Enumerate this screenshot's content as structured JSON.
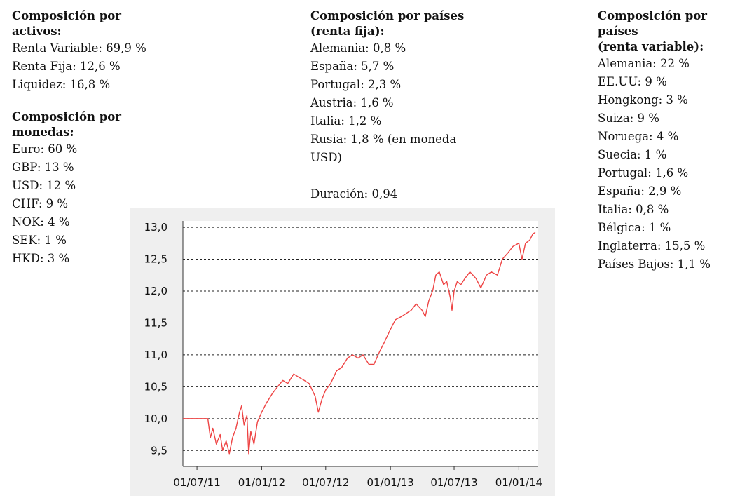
{
  "assets": {
    "title_l1": "Composición por",
    "title_l2": "activos:",
    "items": [
      "Renta Variable: 69,9 %",
      "Renta Fija: 12,6 %",
      "Liquidez: 16,8 %"
    ]
  },
  "currencies": {
    "title_l1": "Composición por",
    "title_l2": "monedas:",
    "items": [
      "Euro: 60 %",
      "GBP: 13 %",
      "USD: 12 %",
      "CHF: 9 %",
      "NOK: 4 %",
      "SEK: 1 %",
      "HKD: 3 %"
    ]
  },
  "fixed_income": {
    "title_l1": "Composición por países",
    "title_l2": "(renta fija):",
    "items": [
      "Alemania: 0,8 %",
      "España: 5,7 %",
      "Portugal: 2,3 %",
      "Austria: 1,6 %",
      "Italia: 1,2 %",
      "Rusia: 1,8 % (en moneda",
      "USD)"
    ],
    "duration": "Duración: 0,94"
  },
  "equity": {
    "title_l1": "Composición por países",
    "title_l2": "(renta variable):",
    "items": [
      "Alemania: 22 %",
      "EE.UU: 9 %",
      "Hongkong: 3 %",
      "Suiza: 9 %",
      "Noruega: 4 %",
      "Suecia: 1 %",
      "Portugal: 1,6 %",
      "España: 2,9 %",
      "Italia: 0,8 %",
      "Bélgica: 1 %",
      "Inglaterra: 15,5 %",
      "Países Bajos: 1,1 %"
    ]
  },
  "chart_data": {
    "type": "line",
    "title": "",
    "xlabel": "",
    "ylabel": "",
    "ylim": [
      9.25,
      13.1
    ],
    "yticks": [
      "13,0",
      "12,5",
      "12,0",
      "11,5",
      "11,0",
      "10,5",
      "10,0",
      "9,5"
    ],
    "ytick_values": [
      13.0,
      12.5,
      12.0,
      11.5,
      11.0,
      10.5,
      10.0,
      9.5
    ],
    "xticks": [
      "01/07/11",
      "01/01/12",
      "01/07/12",
      "01/01/13",
      "01/07/13",
      "01/01/14"
    ],
    "xtick_dates": [
      "2011-07-01",
      "2012-01-01",
      "2012-07-01",
      "2013-01-01",
      "2013-07-01",
      "2014-01-01"
    ],
    "grid": "horizontal dashed",
    "line_color": "#ee4444",
    "series": [
      {
        "points": [
          [
            "2011-05-22",
            10.0
          ],
          [
            "2011-07-15",
            10.0
          ],
          [
            "2011-08-01",
            10.0
          ],
          [
            "2011-08-08",
            9.7
          ],
          [
            "2011-08-15",
            9.85
          ],
          [
            "2011-08-25",
            9.6
          ],
          [
            "2011-09-05",
            9.75
          ],
          [
            "2011-09-12",
            9.5
          ],
          [
            "2011-09-22",
            9.65
          ],
          [
            "2011-10-01",
            9.45
          ],
          [
            "2011-10-10",
            9.7
          ],
          [
            "2011-10-20",
            9.85
          ],
          [
            "2011-10-30",
            10.1
          ],
          [
            "2011-11-05",
            10.2
          ],
          [
            "2011-11-12",
            9.9
          ],
          [
            "2011-11-20",
            10.05
          ],
          [
            "2011-11-25",
            9.45
          ],
          [
            "2011-12-01",
            9.8
          ],
          [
            "2011-12-10",
            9.6
          ],
          [
            "2011-12-20",
            9.95
          ],
          [
            "2012-01-01",
            10.1
          ],
          [
            "2012-01-15",
            10.25
          ],
          [
            "2012-02-01",
            10.4
          ],
          [
            "2012-02-15",
            10.5
          ],
          [
            "2012-03-01",
            10.6
          ],
          [
            "2012-03-15",
            10.55
          ],
          [
            "2012-04-01",
            10.7
          ],
          [
            "2012-04-15",
            10.65
          ],
          [
            "2012-05-01",
            10.6
          ],
          [
            "2012-05-15",
            10.55
          ],
          [
            "2012-06-01",
            10.35
          ],
          [
            "2012-06-10",
            10.1
          ],
          [
            "2012-06-20",
            10.3
          ],
          [
            "2012-07-01",
            10.45
          ],
          [
            "2012-07-15",
            10.55
          ],
          [
            "2012-08-01",
            10.75
          ],
          [
            "2012-08-15",
            10.8
          ],
          [
            "2012-09-01",
            10.95
          ],
          [
            "2012-09-15",
            11.0
          ],
          [
            "2012-10-01",
            10.95
          ],
          [
            "2012-10-15",
            11.0
          ],
          [
            "2012-11-01",
            10.85
          ],
          [
            "2012-11-15",
            10.85
          ],
          [
            "2012-12-01",
            11.05
          ],
          [
            "2012-12-15",
            11.2
          ],
          [
            "2013-01-01",
            11.4
          ],
          [
            "2013-01-15",
            11.55
          ],
          [
            "2013-02-01",
            11.6
          ],
          [
            "2013-02-15",
            11.65
          ],
          [
            "2013-03-01",
            11.7
          ],
          [
            "2013-03-15",
            11.8
          ],
          [
            "2013-04-01",
            11.7
          ],
          [
            "2013-04-10",
            11.6
          ],
          [
            "2013-04-20",
            11.85
          ],
          [
            "2013-05-01",
            12.0
          ],
          [
            "2013-05-10",
            12.25
          ],
          [
            "2013-05-20",
            12.3
          ],
          [
            "2013-06-01",
            12.1
          ],
          [
            "2013-06-10",
            12.15
          ],
          [
            "2013-06-20",
            11.9
          ],
          [
            "2013-06-25",
            11.7
          ],
          [
            "2013-07-01",
            12.0
          ],
          [
            "2013-07-10",
            12.15
          ],
          [
            "2013-07-20",
            12.1
          ],
          [
            "2013-08-01",
            12.2
          ],
          [
            "2013-08-15",
            12.3
          ],
          [
            "2013-09-01",
            12.2
          ],
          [
            "2013-09-15",
            12.05
          ],
          [
            "2013-10-01",
            12.25
          ],
          [
            "2013-10-15",
            12.3
          ],
          [
            "2013-11-01",
            12.25
          ],
          [
            "2013-11-15",
            12.5
          ],
          [
            "2013-12-01",
            12.6
          ],
          [
            "2013-12-15",
            12.7
          ],
          [
            "2014-01-01",
            12.75
          ],
          [
            "2014-01-10",
            12.5
          ],
          [
            "2014-01-20",
            12.75
          ],
          [
            "2014-02-01",
            12.8
          ],
          [
            "2014-02-10",
            12.9
          ],
          [
            "2014-02-17",
            12.92
          ]
        ]
      }
    ]
  }
}
